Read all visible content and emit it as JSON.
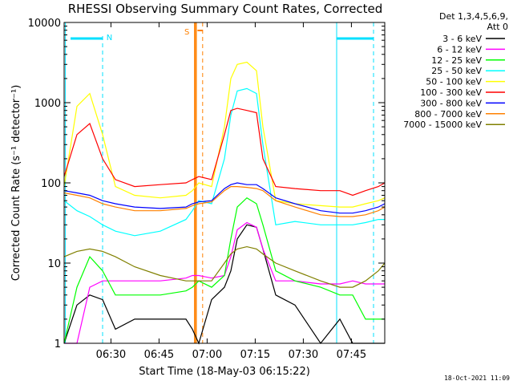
{
  "chart_data": {
    "type": "line",
    "title": "RHESSI Observing Summary Count Rates, Corrected",
    "xlabel": "Start Time (18-May-03 06:15:22)",
    "ylabel": "Corrected Count Rate (s⁻¹ detector⁻¹)",
    "yscale": "log",
    "ylim": [
      1,
      10000
    ],
    "xlim_minutes": [
      0,
      100
    ],
    "x_ticks": [
      {
        "minute": 14.6,
        "label": "06:30"
      },
      {
        "minute": 29.6,
        "label": "06:45"
      },
      {
        "minute": 44.6,
        "label": "07:00"
      },
      {
        "minute": 59.6,
        "label": "07:15"
      },
      {
        "minute": 74.6,
        "label": "07:30"
      },
      {
        "minute": 89.6,
        "label": "07:45"
      }
    ],
    "y_ticks": [
      {
        "value": 1,
        "label": "1"
      },
      {
        "value": 10,
        "label": "10"
      },
      {
        "value": 100,
        "label": "100"
      },
      {
        "value": 1000,
        "label": "1000"
      },
      {
        "value": 10000,
        "label": "10000"
      }
    ],
    "legend": {
      "header_line1": "Det 1,3,4,5,6,9,",
      "header_line2": "Att 0",
      "placement": "right"
    },
    "x_sample_minutes": [
      0,
      4,
      8,
      12,
      16,
      22,
      30,
      38,
      40,
      42,
      46,
      50,
      52,
      54,
      57,
      60,
      62,
      66,
      72,
      80,
      86,
      90,
      94,
      98,
      100
    ],
    "series": [
      {
        "name": "3 - 6 keV",
        "color": "#000000",
        "values": [
          1,
          3,
          4,
          3.5,
          1.5,
          2,
          2,
          2,
          1.5,
          1,
          3.5,
          5,
          8,
          20,
          30,
          28,
          15,
          4,
          3,
          1,
          2,
          1,
          1,
          1,
          1
        ]
      },
      {
        "name": "6 - 12 keV",
        "color": "#ff00ff",
        "values": [
          1,
          1,
          5,
          6,
          6,
          6,
          6,
          6.5,
          7,
          7,
          6.5,
          7,
          12,
          26,
          32,
          28,
          15,
          6,
          6,
          5.5,
          5.5,
          6,
          5.5,
          5.5,
          5.5
        ]
      },
      {
        "name": "12 - 25 keV",
        "color": "#00ff00",
        "values": [
          1,
          5,
          12,
          8,
          4,
          4,
          4,
          4.5,
          5,
          6,
          5,
          7,
          20,
          50,
          65,
          55,
          30,
          8,
          6,
          5,
          4,
          4,
          2,
          2,
          2
        ]
      },
      {
        "name": "25 - 50 keV",
        "color": "#00ffff",
        "values": [
          60,
          45,
          38,
          30,
          25,
          22,
          25,
          35,
          45,
          60,
          55,
          200,
          700,
          1400,
          1500,
          1300,
          300,
          30,
          33,
          30,
          30,
          30,
          32,
          35,
          35
        ]
      },
      {
        "name": "50 - 100 keV",
        "color": "#ffff00",
        "values": [
          90,
          900,
          1300,
          400,
          90,
          70,
          65,
          70,
          80,
          100,
          90,
          500,
          2000,
          3000,
          3200,
          2500,
          500,
          60,
          55,
          52,
          50,
          50,
          55,
          60,
          65
        ]
      },
      {
        "name": "100 - 300 keV",
        "color": "#ff0000",
        "values": [
          120,
          400,
          550,
          200,
          110,
          90,
          95,
          100,
          110,
          120,
          110,
          400,
          800,
          850,
          800,
          750,
          200,
          90,
          85,
          80,
          80,
          70,
          80,
          90,
          100
        ]
      },
      {
        "name": "300 - 800 keV",
        "color": "#0000ff",
        "values": [
          80,
          75,
          70,
          60,
          55,
          50,
          48,
          50,
          55,
          58,
          60,
          85,
          95,
          100,
          95,
          95,
          85,
          65,
          55,
          45,
          42,
          42,
          45,
          50,
          55
        ]
      },
      {
        "name": "800 - 7000 keV",
        "color": "#ff8000",
        "values": [
          75,
          70,
          65,
          55,
          50,
          45,
          45,
          48,
          52,
          55,
          58,
          80,
          90,
          90,
          88,
          85,
          80,
          60,
          50,
          40,
          38,
          38,
          40,
          45,
          50
        ]
      },
      {
        "name": "7000 - 15000 keV",
        "color": "#808000",
        "values": [
          12,
          14,
          15,
          14,
          12,
          9,
          7,
          6,
          6,
          6,
          6,
          10,
          13,
          15,
          16,
          15,
          13,
          10,
          8,
          6,
          5,
          5,
          6,
          8,
          10
        ]
      }
    ],
    "annotations": [
      {
        "label": "N",
        "color": "#00e0ff"
      },
      {
        "label": "S",
        "color": "#ff8000"
      }
    ],
    "timestamp": "18-Oct-2021 11:09"
  }
}
